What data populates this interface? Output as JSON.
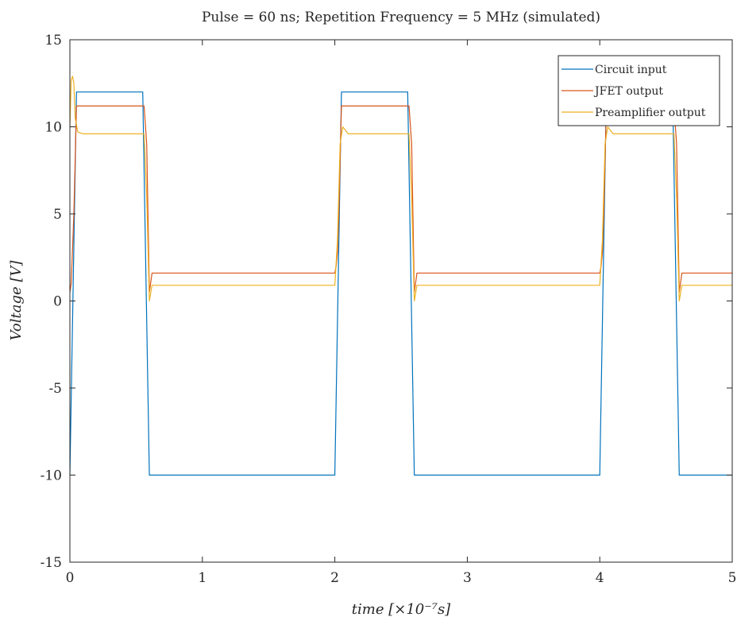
{
  "chart_data": {
    "type": "line",
    "title": "Pulse = 60 ns; Repetition Frequency = 5 MHz (simulated)",
    "xlabel": "time [×10⁻⁷s]",
    "ylabel": "Voltage [V]",
    "xlim": [
      0,
      5
    ],
    "ylim": [
      -15,
      15
    ],
    "xticks": [
      0,
      1,
      2,
      3,
      4,
      5
    ],
    "yticks": [
      -15,
      -10,
      -5,
      0,
      5,
      10,
      15
    ],
    "grid": false,
    "legend_position": "top-right",
    "series": [
      {
        "name": "Circuit input",
        "color": "#0072bd",
        "x": [
          0,
          0.05,
          0.55,
          0.6,
          2.0,
          2.05,
          2.55,
          2.6,
          4.0,
          4.05,
          4.55,
          4.6,
          5.0
        ],
        "y": [
          -10,
          12,
          12,
          -10,
          -10,
          12,
          12,
          -10,
          -10,
          12,
          12,
          -10,
          -10
        ]
      },
      {
        "name": "JFET output",
        "color": "#d95319",
        "x": [
          0,
          0.01,
          0.03,
          0.05,
          0.56,
          0.58,
          0.6,
          0.62,
          0.64,
          2.0,
          2.01,
          2.02,
          2.03,
          2.05,
          2.56,
          2.58,
          2.6,
          2.62,
          2.64,
          4.0,
          4.01,
          4.02,
          4.03,
          4.05,
          4.56,
          4.58,
          4.6,
          4.62,
          4.64,
          5.0
        ],
        "y": [
          0.5,
          1.0,
          5.0,
          11.2,
          11.2,
          9.0,
          0.5,
          1.6,
          1.6,
          1.6,
          2.0,
          2.8,
          5.0,
          11.2,
          11.2,
          9.0,
          0.5,
          1.6,
          1.6,
          1.6,
          2.0,
          2.8,
          5.0,
          11.2,
          11.2,
          9.0,
          0.5,
          1.6,
          1.6,
          1.6
        ]
      },
      {
        "name": "Preamplifier output",
        "color": "#edb120",
        "x": [
          0,
          0.01,
          0.02,
          0.03,
          0.04,
          0.06,
          0.1,
          0.56,
          0.58,
          0.6,
          0.62,
          0.65,
          2.0,
          2.01,
          2.02,
          2.04,
          2.06,
          2.1,
          2.56,
          2.58,
          2.6,
          2.62,
          2.65,
          4.0,
          4.01,
          4.02,
          4.04,
          4.06,
          4.1,
          4.56,
          4.58,
          4.6,
          4.62,
          4.65,
          5.0
        ],
        "y": [
          10.0,
          12.7,
          12.9,
          12.5,
          10.5,
          9.7,
          9.6,
          9.6,
          6.0,
          0.0,
          0.9,
          0.9,
          0.9,
          2.2,
          3.5,
          9.0,
          10.0,
          9.6,
          9.6,
          6.0,
          0.0,
          0.9,
          0.9,
          0.9,
          2.2,
          3.5,
          9.0,
          10.0,
          9.6,
          9.6,
          6.0,
          0.0,
          0.9,
          0.9,
          0.9
        ]
      }
    ]
  }
}
